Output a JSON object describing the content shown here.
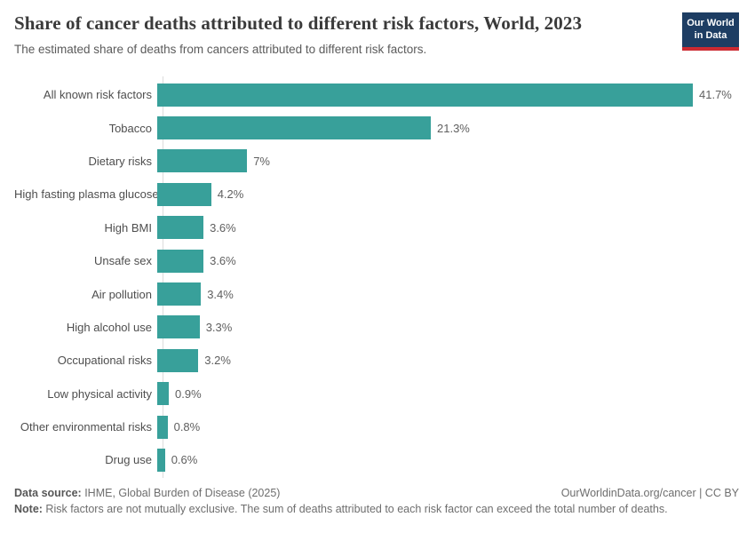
{
  "header": {
    "title": "Share of cancer deaths attributed to different risk factors, World, 2023",
    "subtitle": "The estimated share of deaths from cancers attributed to different risk factors.",
    "logo": {
      "line1": "Our World",
      "line2": "in Data",
      "bg_color": "#1d3d63",
      "accent_color": "#cc2a31"
    }
  },
  "chart_data": {
    "type": "bar",
    "orientation": "horizontal",
    "title": "Share of cancer deaths attributed to different risk factors, World, 2023",
    "subtitle": "The estimated share of deaths from cancers attributed to different risk factors.",
    "categories": [
      "All known risk factors",
      "Tobacco",
      "Dietary risks",
      "High fasting plasma glucose",
      "High BMI",
      "Unsafe sex",
      "Air pollution",
      "High alcohol use",
      "Occupational risks",
      "Low physical activity",
      "Other environmental risks",
      "Drug use"
    ],
    "values": [
      41.7,
      21.3,
      7,
      4.2,
      3.6,
      3.6,
      3.4,
      3.3,
      3.2,
      0.9,
      0.8,
      0.6
    ],
    "value_labels": [
      "41.7%",
      "21.3%",
      "7%",
      "4.2%",
      "3.6%",
      "3.6%",
      "3.4%",
      "3.3%",
      "3.2%",
      "0.9%",
      "0.8%",
      "0.6%"
    ],
    "unit": "%",
    "xlim": [
      0,
      41.7
    ],
    "grid": false,
    "legend": "none",
    "bar_color": "#38a09a"
  },
  "footer": {
    "data_source_label": "Data source:",
    "data_source_text": " IHME, Global Burden of Disease (2025)",
    "link": "OurWorldinData.org/cancer | CC BY",
    "note_label": "Note:",
    "note_text": " Risk factors are not mutually exclusive. The sum of deaths attributed to each risk factor can exceed the total number of deaths."
  }
}
